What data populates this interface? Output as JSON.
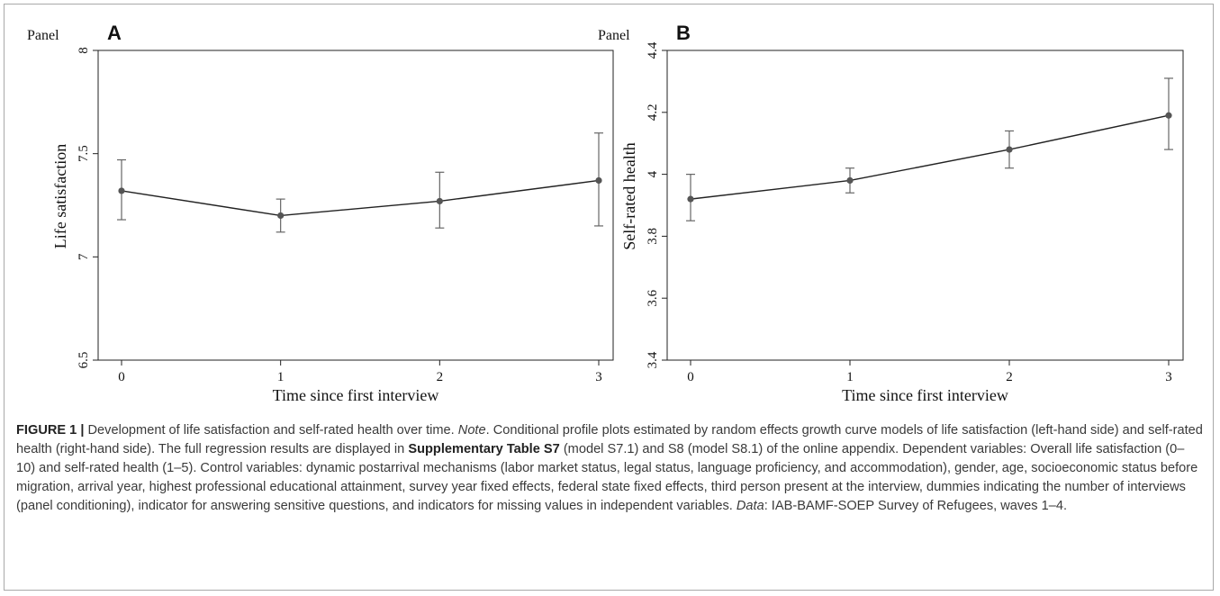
{
  "chart_data": [
    {
      "type": "line",
      "panel_word": "Panel",
      "panel_letter": "A",
      "xlabel": "Time since first interview",
      "ylabel": "Life satisfaction",
      "x": [
        0,
        1,
        2,
        3
      ],
      "xticks": [
        "0",
        "1",
        "2",
        "3"
      ],
      "ylim": [
        6.5,
        8
      ],
      "yticks": [
        6.5,
        7,
        7.5,
        8
      ],
      "ytick_labels": [
        "6.5",
        "7",
        "7.5",
        "8"
      ],
      "values": [
        7.32,
        7.2,
        7.27,
        7.37
      ],
      "ci_low": [
        7.18,
        7.12,
        7.14,
        7.15
      ],
      "ci_high": [
        7.47,
        7.28,
        7.41,
        7.6
      ],
      "grid": false,
      "color": "#555555"
    },
    {
      "type": "line",
      "panel_word": "Panel",
      "panel_letter": "B",
      "xlabel": "Time since first interview",
      "ylabel": "Self-rated health",
      "x": [
        0,
        1,
        2,
        3
      ],
      "xticks": [
        "0",
        "1",
        "2",
        "3"
      ],
      "ylim": [
        3.4,
        4.4
      ],
      "yticks": [
        3.4,
        3.6,
        3.8,
        4,
        4.2,
        4.4
      ],
      "ytick_labels": [
        "3.4",
        "3.6",
        "3.8",
        "4",
        "4.2",
        "4.4"
      ],
      "values": [
        3.92,
        3.98,
        4.08,
        4.19
      ],
      "ci_low": [
        3.85,
        3.94,
        4.02,
        4.08
      ],
      "ci_high": [
        4.0,
        4.02,
        4.14,
        4.31
      ],
      "grid": false,
      "color": "#555555"
    }
  ],
  "caption": {
    "figure_label": "FIGURE 1 |",
    "text_1": " Development of life satisfaction and self-rated health over time. ",
    "note_label": "Note",
    "text_2": ". Conditional profile plots estimated by random effects growth curve models of life satisfaction (left-hand side) and self-rated health (right-hand side). The full regression results are displayed in ",
    "supp_table": "Supplementary Table S7",
    "text_3": " (model S7.1) and S8 (model S8.1) of the online appendix. Dependent variables: Overall life satisfaction (0–10) and self-rated health (1–5). Control variables: dynamic postarrival mechanisms (labor market status, legal status, language proficiency, and accommodation), gender, age, socioeconomic status before migration, arrival year, highest professional educational attainment, survey year fixed effects, federal state fixed effects, third person present at the interview, dummies indicating the number of interviews (panel conditioning), indicator for answering sensitive questions, and indicators for missing values in independent variables. ",
    "data_label": "Data",
    "text_4": ": IAB-BAMF-SOEP Survey of Refugees, waves 1–4."
  }
}
